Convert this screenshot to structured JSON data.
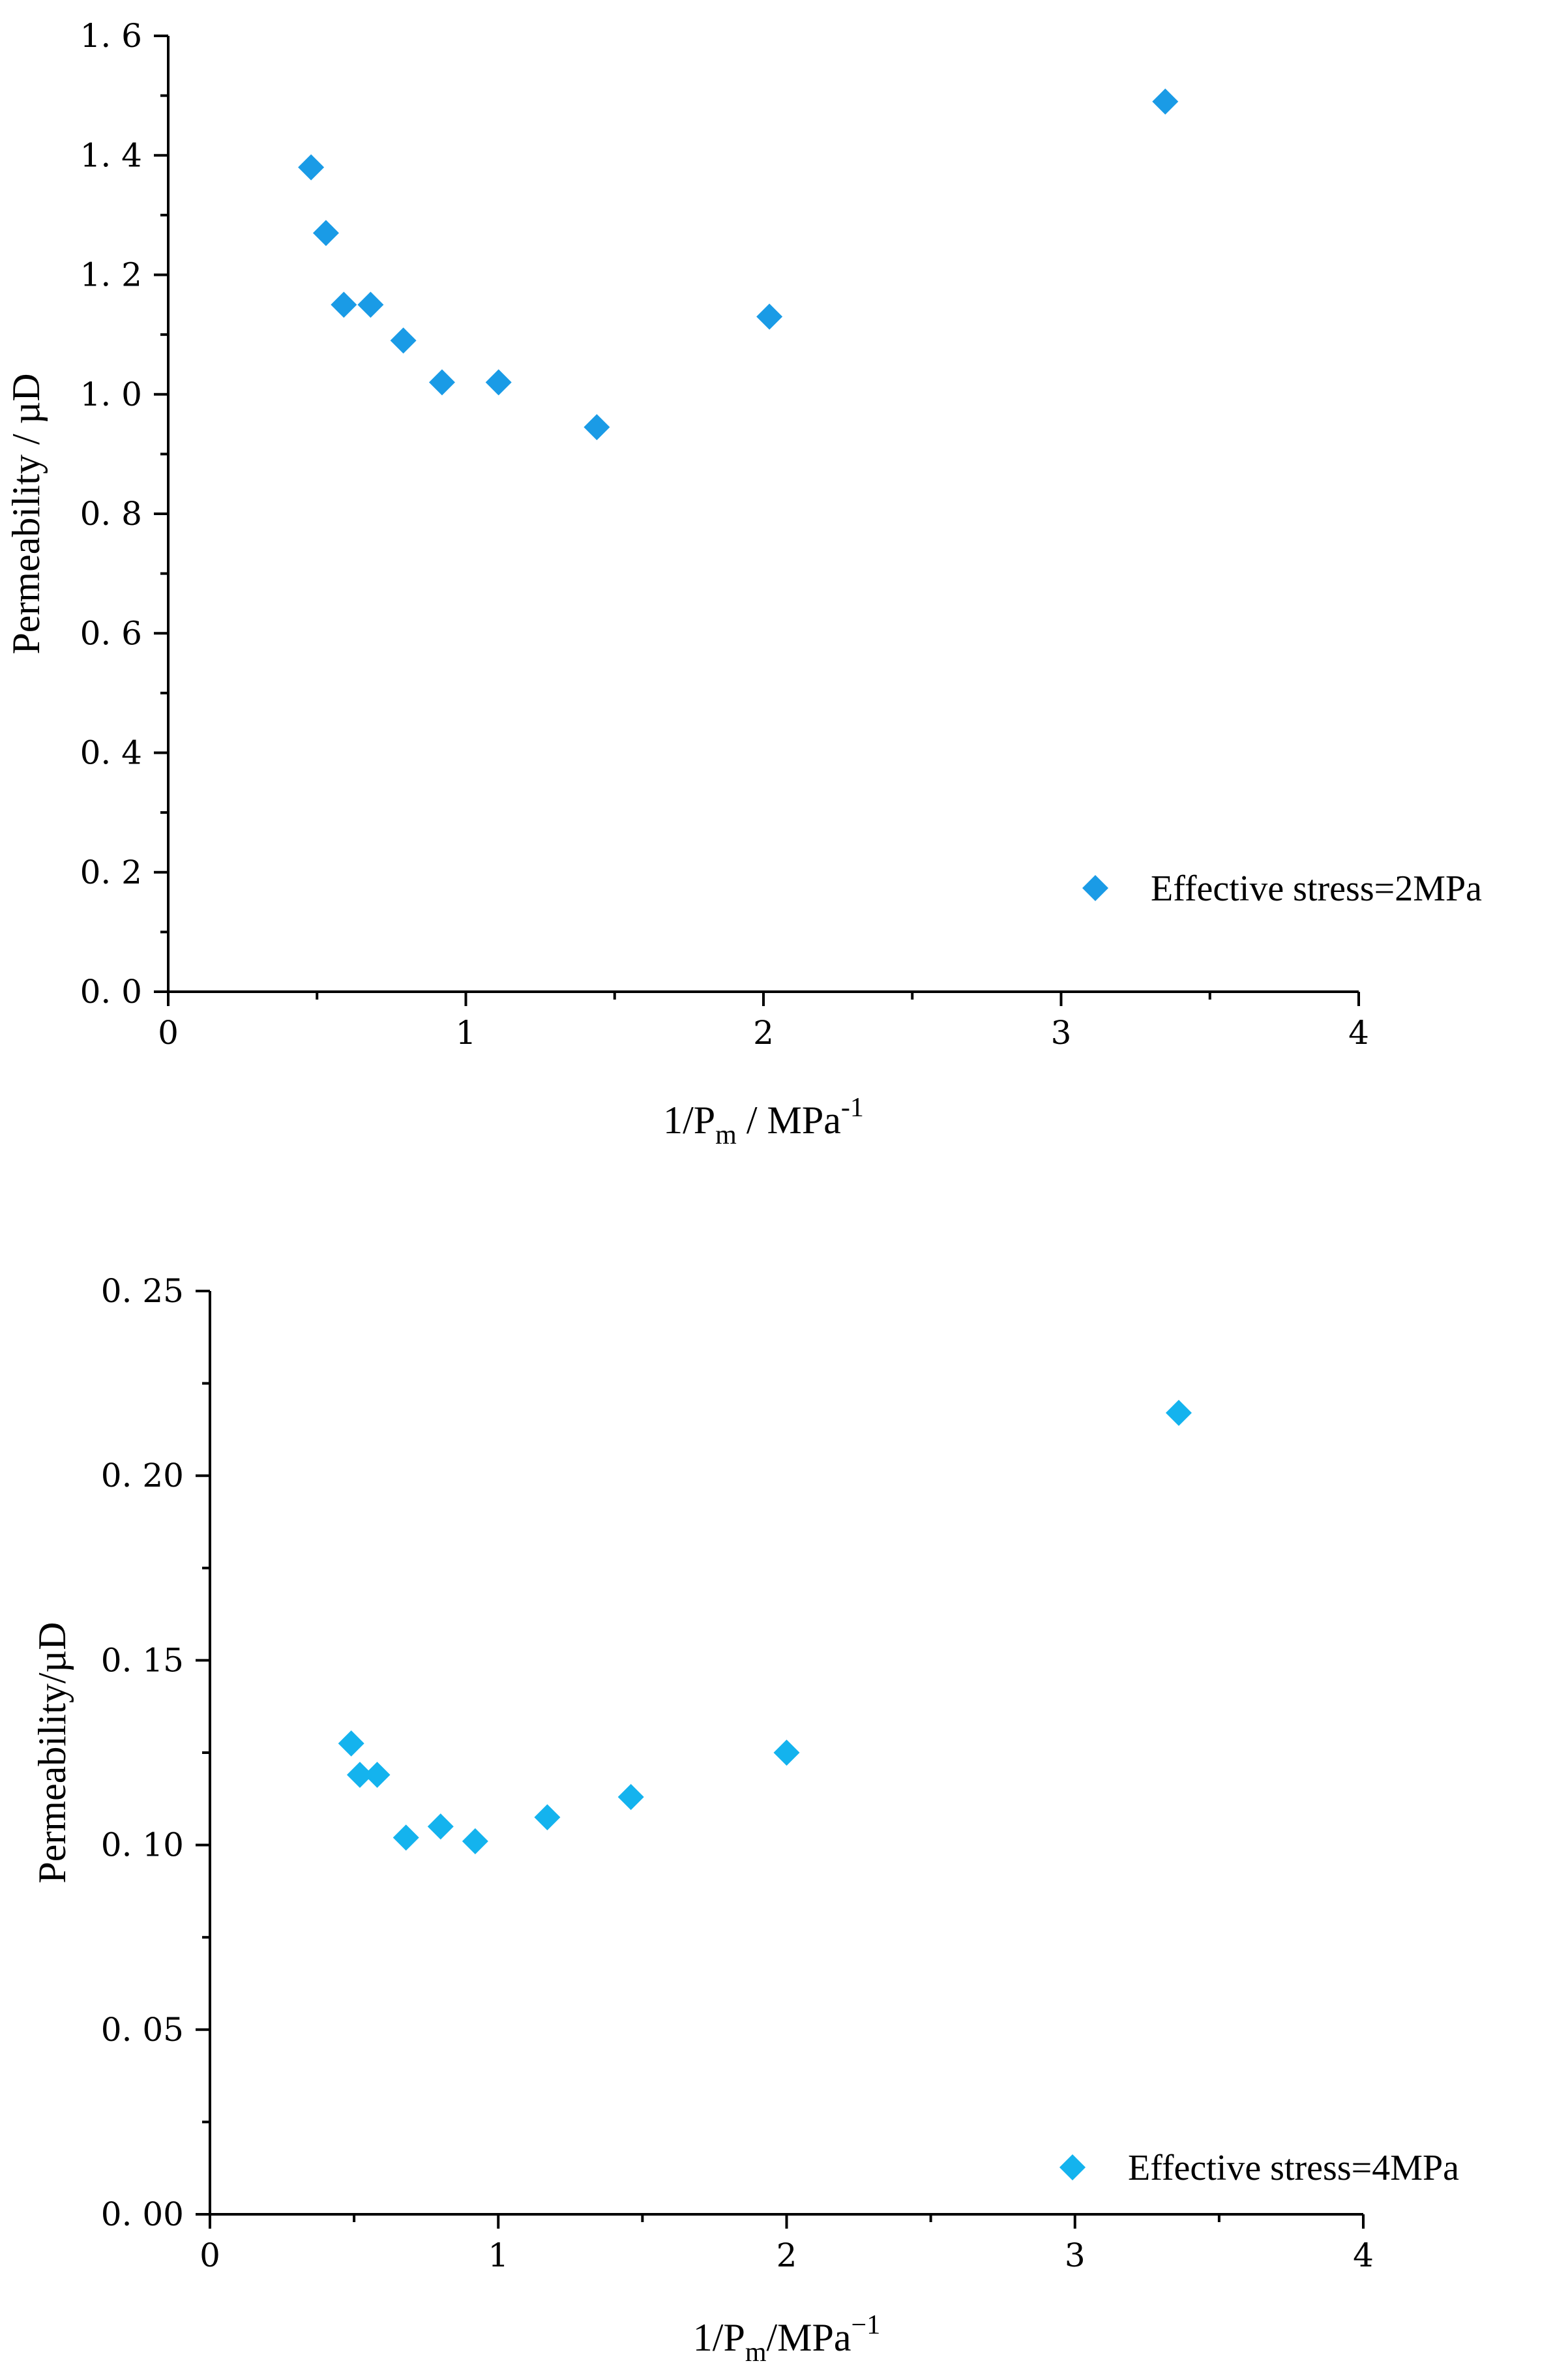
{
  "chart_data": [
    {
      "type": "scatter",
      "title": "",
      "xlabel": {
        "main": "1/P",
        "sub": "m",
        "rest": " / MPa",
        "sup": "-1"
      },
      "ylabel": "Permeability / µD",
      "xlim": [
        0,
        4
      ],
      "ylim": [
        0.0,
        1.6
      ],
      "grid": false,
      "legend_position": "bottom-right",
      "x_ticks": [
        {
          "value": 0,
          "label": "0"
        },
        {
          "value": 1,
          "label": "1"
        },
        {
          "value": 2,
          "label": "2"
        },
        {
          "value": 3,
          "label": "3"
        },
        {
          "value": 4,
          "label": "4"
        }
      ],
      "y_ticks": [
        {
          "value": 0.0,
          "label": "0. 0"
        },
        {
          "value": 0.2,
          "label": "0. 2"
        },
        {
          "value": 0.4,
          "label": "0. 4"
        },
        {
          "value": 0.6,
          "label": "0. 6"
        },
        {
          "value": 0.8,
          "label": "0. 8"
        },
        {
          "value": 1.0,
          "label": "1. 0"
        },
        {
          "value": 1.2,
          "label": "1. 2"
        },
        {
          "value": 1.4,
          "label": "1. 4"
        },
        {
          "value": 1.6,
          "label": "1. 6"
        }
      ],
      "series": [
        {
          "name": "Effective stress=2MPa",
          "color": "#1a9be6",
          "marker": "diamond",
          "x": [
            0.48,
            0.53,
            0.59,
            0.68,
            0.79,
            0.92,
            1.11,
            1.44,
            2.02,
            3.35
          ],
          "y": [
            1.38,
            1.27,
            1.15,
            1.15,
            1.09,
            1.02,
            1.02,
            0.945,
            1.13,
            1.49
          ]
        }
      ]
    },
    {
      "type": "scatter",
      "title": "",
      "xlabel": {
        "main": "1/P",
        "sub": "m",
        "rest": "/MPa",
        "sup": "−1"
      },
      "ylabel": "Permeability/µD",
      "xlim": [
        0,
        4
      ],
      "ylim": [
        0.0,
        0.25
      ],
      "grid": false,
      "legend_position": "bottom-right",
      "x_ticks": [
        {
          "value": 0,
          "label": "0"
        },
        {
          "value": 1,
          "label": "1"
        },
        {
          "value": 2,
          "label": "2"
        },
        {
          "value": 3,
          "label": "3"
        },
        {
          "value": 4,
          "label": "4"
        }
      ],
      "y_ticks": [
        {
          "value": 0.0,
          "label": "0. 00"
        },
        {
          "value": 0.05,
          "label": "0. 05"
        },
        {
          "value": 0.1,
          "label": "0. 10"
        },
        {
          "value": 0.15,
          "label": "0. 15"
        },
        {
          "value": 0.2,
          "label": "0. 20"
        },
        {
          "value": 0.25,
          "label": "0. 25"
        }
      ],
      "series": [
        {
          "name": "Effective stress=4MPa",
          "color": "#14b3ee",
          "marker": "diamond",
          "x": [
            0.49,
            0.52,
            0.58,
            0.68,
            0.8,
            0.92,
            1.17,
            1.46,
            2.0,
            3.36
          ],
          "y": [
            0.1275,
            0.119,
            0.119,
            0.102,
            0.105,
            0.101,
            0.1075,
            0.113,
            0.125,
            0.217
          ]
        }
      ]
    }
  ]
}
